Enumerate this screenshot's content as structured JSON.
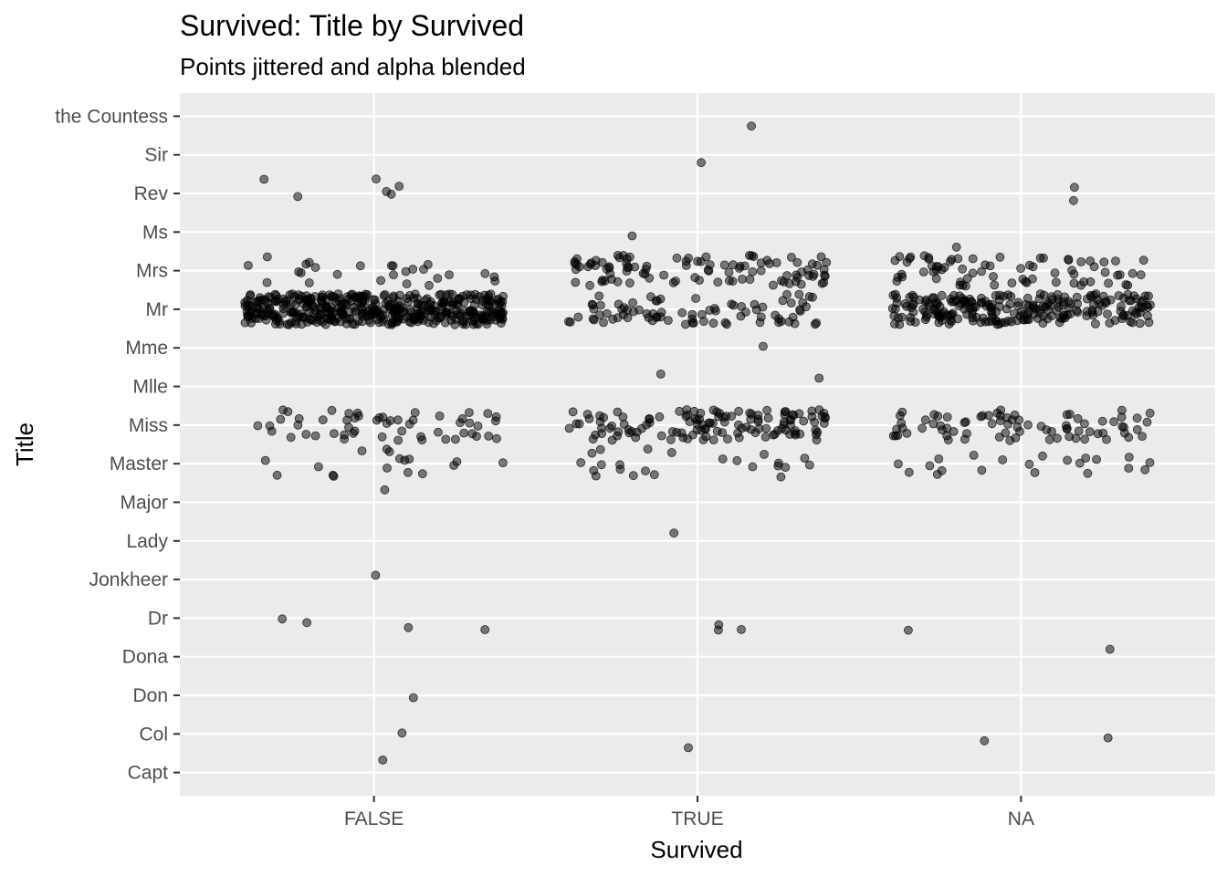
{
  "chart_data": {
    "type": "scatter",
    "title": "Survived: Title by Survived",
    "subtitle": "Points jittered and alpha blended",
    "xlabel": "Survived",
    "ylabel": "Title",
    "x_categories": [
      "FALSE",
      "TRUE",
      "NA"
    ],
    "y_categories": [
      "Capt",
      "Col",
      "Don",
      "Dona",
      "Dr",
      "Jonkheer",
      "Lady",
      "Major",
      "Master",
      "Miss",
      "Mlle",
      "Mme",
      "Mr",
      "Mrs",
      "Ms",
      "Rev",
      "Sir",
      "the Countess"
    ],
    "jitter": {
      "width": 0.4,
      "height": 0.4
    },
    "alpha": 0.5,
    "point_color": "#000000",
    "panel_background": "#EBEBEB",
    "grid_color": "#FFFFFF",
    "grid": true,
    "counts": {
      "FALSE": {
        "Capt": 1,
        "Col": 1,
        "Don": 1,
        "Dr": 4,
        "Jonkheer": 1,
        "Major": 1,
        "Master": 17,
        "Miss": 55,
        "Mr": 436,
        "Mrs": 26,
        "Rev": 6
      },
      "TRUE": {
        "Col": 1,
        "Dr": 3,
        "Lady": 1,
        "Master": 23,
        "Miss": 127,
        "Mlle": 2,
        "Mme": 1,
        "Mr": 81,
        "Mrs": 99,
        "Ms": 1,
        "Sir": 1,
        "the Countess": 1
      },
      "NA": {
        "Col": 2,
        "Dona": 1,
        "Dr": 1,
        "Master": 21,
        "Miss": 78,
        "Mr": 240,
        "Mrs": 72,
        "Ms": 1,
        "Rev": 2
      }
    }
  }
}
